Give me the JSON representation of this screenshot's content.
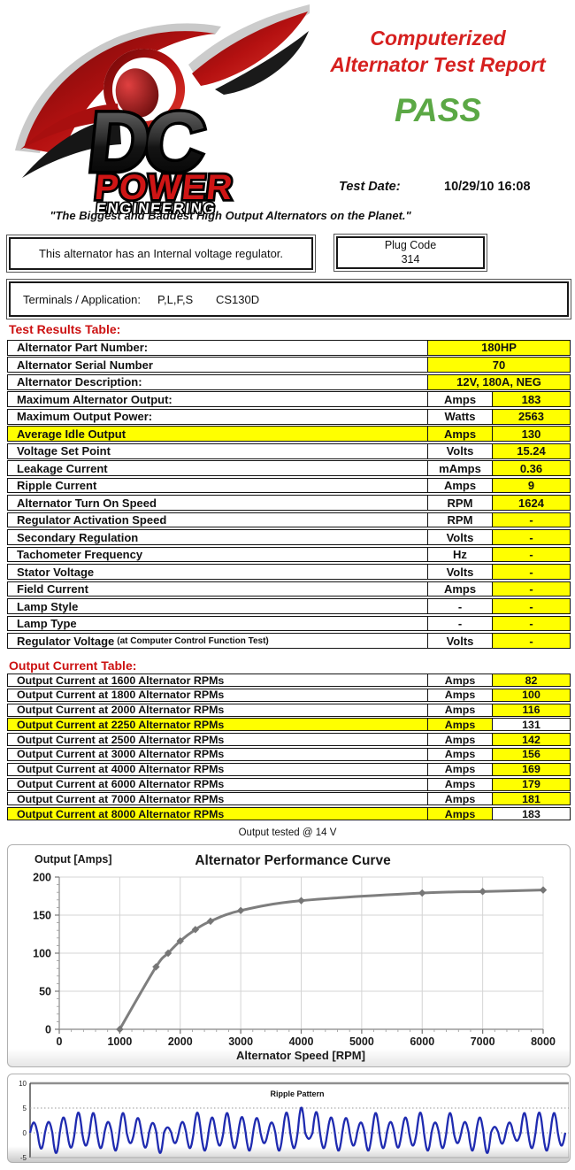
{
  "header": {
    "title_line1": "Computerized",
    "title_line2": "Alternator Test Report",
    "result": "PASS",
    "test_date_label": "Test Date:",
    "test_date_value": "10/29/10 16:08",
    "tagline": "\"The Biggest and Baddest High Output Alternators on the Planet.\"",
    "logo": {
      "line1": "DC",
      "line2": "POWER",
      "line3": "ENGINEERING"
    }
  },
  "info": {
    "regulator_note": "This alternator has an Internal voltage regulator.",
    "plug_code_label": "Plug Code",
    "plug_code_value": "314",
    "terminals_label": "Terminals / Application:",
    "terminals_value": "P,L,F,S",
    "application_value": "CS130D"
  },
  "test_results": {
    "heading": "Test Results Table:",
    "rows": [
      {
        "label": "Alternator Part Number:",
        "units": null,
        "value": "180HP",
        "highlight": false,
        "merged": true
      },
      {
        "label": "Alternator Serial Number",
        "units": null,
        "value": "70",
        "highlight": false,
        "merged": true
      },
      {
        "label": "Alternator Description:",
        "units": null,
        "value": "12V, 180A, NEG",
        "highlight": false,
        "merged": true
      },
      {
        "label": "Maximum Alternator Output:",
        "units": "Amps",
        "value": "183",
        "highlight": false,
        "merged": false
      },
      {
        "label": "Maximum Output Power:",
        "units": "Watts",
        "value": "2563",
        "highlight": false,
        "merged": false
      },
      {
        "label": "Average Idle Output",
        "units": "Amps",
        "value": "130",
        "highlight": true,
        "merged": false
      },
      {
        "label": "Voltage Set Point",
        "units": "Volts",
        "value": "15.24",
        "highlight": false,
        "merged": false
      },
      {
        "label": "Leakage Current",
        "units": "mAmps",
        "value": "0.36",
        "highlight": false,
        "merged": false
      },
      {
        "label": "Ripple Current",
        "units": "Amps",
        "value": "9",
        "highlight": false,
        "merged": false
      },
      {
        "label": "Alternator Turn On Speed",
        "units": "RPM",
        "value": "1624",
        "highlight": false,
        "merged": false
      },
      {
        "label": "Regulator Activation Speed",
        "units": "RPM",
        "value": "-",
        "highlight": false,
        "merged": false
      },
      {
        "label": "Secondary Regulation",
        "units": "Volts",
        "value": "-",
        "highlight": false,
        "merged": false
      },
      {
        "label": "Tachometer Frequency",
        "units": "Hz",
        "value": "-",
        "highlight": false,
        "merged": false
      },
      {
        "label": "Stator Voltage",
        "units": "Volts",
        "value": "-",
        "highlight": false,
        "merged": false
      },
      {
        "label": "Field Current",
        "units": "Amps",
        "value": "-",
        "highlight": false,
        "merged": false
      },
      {
        "label": "Lamp Style",
        "units": "-",
        "value": "-",
        "highlight": false,
        "merged": false
      },
      {
        "label": "Lamp Type",
        "units": "-",
        "value": "-",
        "highlight": false,
        "merged": false
      },
      {
        "label": "Regulator Voltage",
        "label_small": "(at Computer Control Function Test)",
        "units": "Volts",
        "value": "-",
        "highlight": false,
        "merged": false
      }
    ]
  },
  "output_current": {
    "heading": "Output Current Table:",
    "rows": [
      {
        "label": "Output Current at 1600 Alternator RPMs",
        "units": "Amps",
        "value": "82",
        "highlight": false
      },
      {
        "label": "Output Current at 1800 Alternator RPMs",
        "units": "Amps",
        "value": "100",
        "highlight": false
      },
      {
        "label": "Output Current at 2000 Alternator RPMs",
        "units": "Amps",
        "value": "116",
        "highlight": false
      },
      {
        "label": "Output Current at 2250 Alternator RPMs",
        "units": "Amps",
        "value": "131",
        "highlight": true
      },
      {
        "label": "Output Current at 2500 Alternator RPMs",
        "units": "Amps",
        "value": "142",
        "highlight": false
      },
      {
        "label": "Output Current at 3000 Alternator RPMs",
        "units": "Amps",
        "value": "156",
        "highlight": false
      },
      {
        "label": "Output Current at 4000 Alternator RPMs",
        "units": "Amps",
        "value": "169",
        "highlight": false
      },
      {
        "label": "Output Current at 6000 Alternator RPMs",
        "units": "Amps",
        "value": "179",
        "highlight": false
      },
      {
        "label": "Output Current at 7000 Alternator RPMs",
        "units": "Amps",
        "value": "181",
        "highlight": false
      },
      {
        "label": "Output Current at 8000 Alternator RPMs",
        "units": "Amps",
        "value": "183",
        "highlight": true
      }
    ],
    "footnote": "Output tested @ 14 V"
  },
  "chart_data": [
    {
      "type": "line",
      "title": "Alternator Performance Curve",
      "ylabel": "Output [Amps]",
      "xlabel": "Alternator Speed [RPM]",
      "x": [
        1000,
        1600,
        1800,
        2000,
        2250,
        2500,
        3000,
        4000,
        6000,
        7000,
        8000
      ],
      "y": [
        0,
        82,
        100,
        116,
        131,
        142,
        156,
        169,
        179,
        181,
        183
      ],
      "xlim": [
        0,
        8000
      ],
      "ylim": [
        0,
        200
      ],
      "xticks": [
        0,
        1000,
        2000,
        3000,
        4000,
        5000,
        6000,
        7000,
        8000
      ],
      "yticks": [
        0,
        50,
        100,
        150,
        200
      ],
      "grid": true,
      "legend": "none",
      "line_color": "#7e7e7e",
      "marker": "diamond"
    },
    {
      "type": "line",
      "title": "Ripple Pattern",
      "ylim": [
        -5,
        10
      ],
      "yticks": [
        10,
        5,
        0,
        -5
      ],
      "grid": "dotted at 5 and 0",
      "line_color": "#1f2bb0",
      "cycles": 36,
      "peaks": [
        2.1,
        2.2,
        3.1,
        4.1,
        4.0,
        2.2,
        4.0,
        3.0,
        2.0,
        1.1,
        2.2,
        4.1,
        3.1,
        4.0,
        3.2,
        3.0,
        2.1,
        4.1,
        5.1,
        4.2,
        3.1,
        3.0,
        2.1,
        4.0,
        2.2,
        3.1,
        4.1,
        2.1,
        4.0,
        2.2,
        3.1,
        1.2,
        2.1,
        4.0,
        4.1,
        4.0
      ],
      "troughs": [
        -3.2,
        -4.1,
        -3.0,
        -2.6,
        -3.1,
        -3.6,
        -2.1,
        -3.0,
        -4.1,
        -2.1,
        -3.1,
        -3.6,
        -2.6,
        -3.1,
        -3.6,
        -2.1,
        -3.6,
        -3.1,
        -1.2,
        -3.1,
        -3.6,
        -2.6,
        -3.6,
        -3.1,
        -3.0,
        -2.6,
        -3.6,
        -3.1,
        -2.1,
        -3.6,
        -4.1,
        -2.2,
        -1.6,
        -3.1,
        -3.6,
        -2.6
      ]
    }
  ],
  "colors": {
    "accent_red": "#d6201f",
    "pass_green": "#5ba845",
    "highlight_yellow": "#ffff00",
    "perf_line_gray": "#7e7e7e",
    "ripple_blue": "#1f2bb0"
  }
}
